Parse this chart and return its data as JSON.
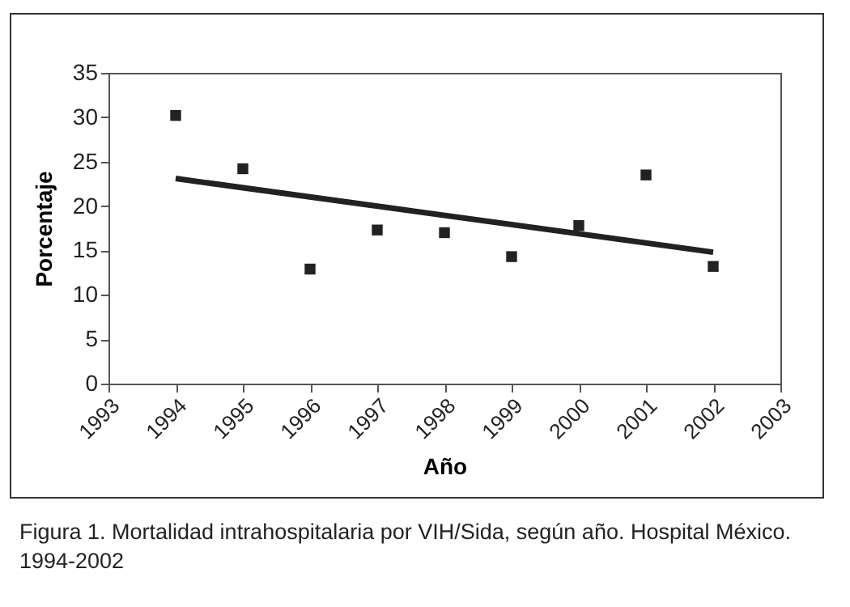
{
  "chart_data": {
    "type": "scatter",
    "xlabel": "Año",
    "ylabel": "Porcentaje",
    "x": [
      1994,
      1995,
      1996,
      1997,
      1998,
      1999,
      2000,
      2001,
      2002
    ],
    "grid": false,
    "series": [
      {
        "color": "#222222",
        "marker": "square",
        "values": [
          30.2,
          24.2,
          12.9,
          17.3,
          17.0,
          14.3,
          17.8,
          23.5,
          13.2
        ]
      },
      {
        "type": "line",
        "color": "#222222",
        "marker": "none",
        "x": [
          1994,
          2002
        ],
        "values": [
          23.1,
          14.8
        ]
      }
    ],
    "xlim": [
      1993,
      2003
    ],
    "xticks": [
      1993,
      1994,
      1995,
      1996,
      1997,
      1998,
      1999,
      2000,
      2001,
      2002,
      2003
    ],
    "ylim": [
      0,
      35
    ],
    "yticks": [
      0,
      5,
      10,
      15,
      20,
      25,
      30,
      35
    ],
    "annotations": [
      "Figura 1. Mortalidad intrahospitalaria por VIH/Sida, según año. Hospital México. 1994-2002"
    ]
  }
}
